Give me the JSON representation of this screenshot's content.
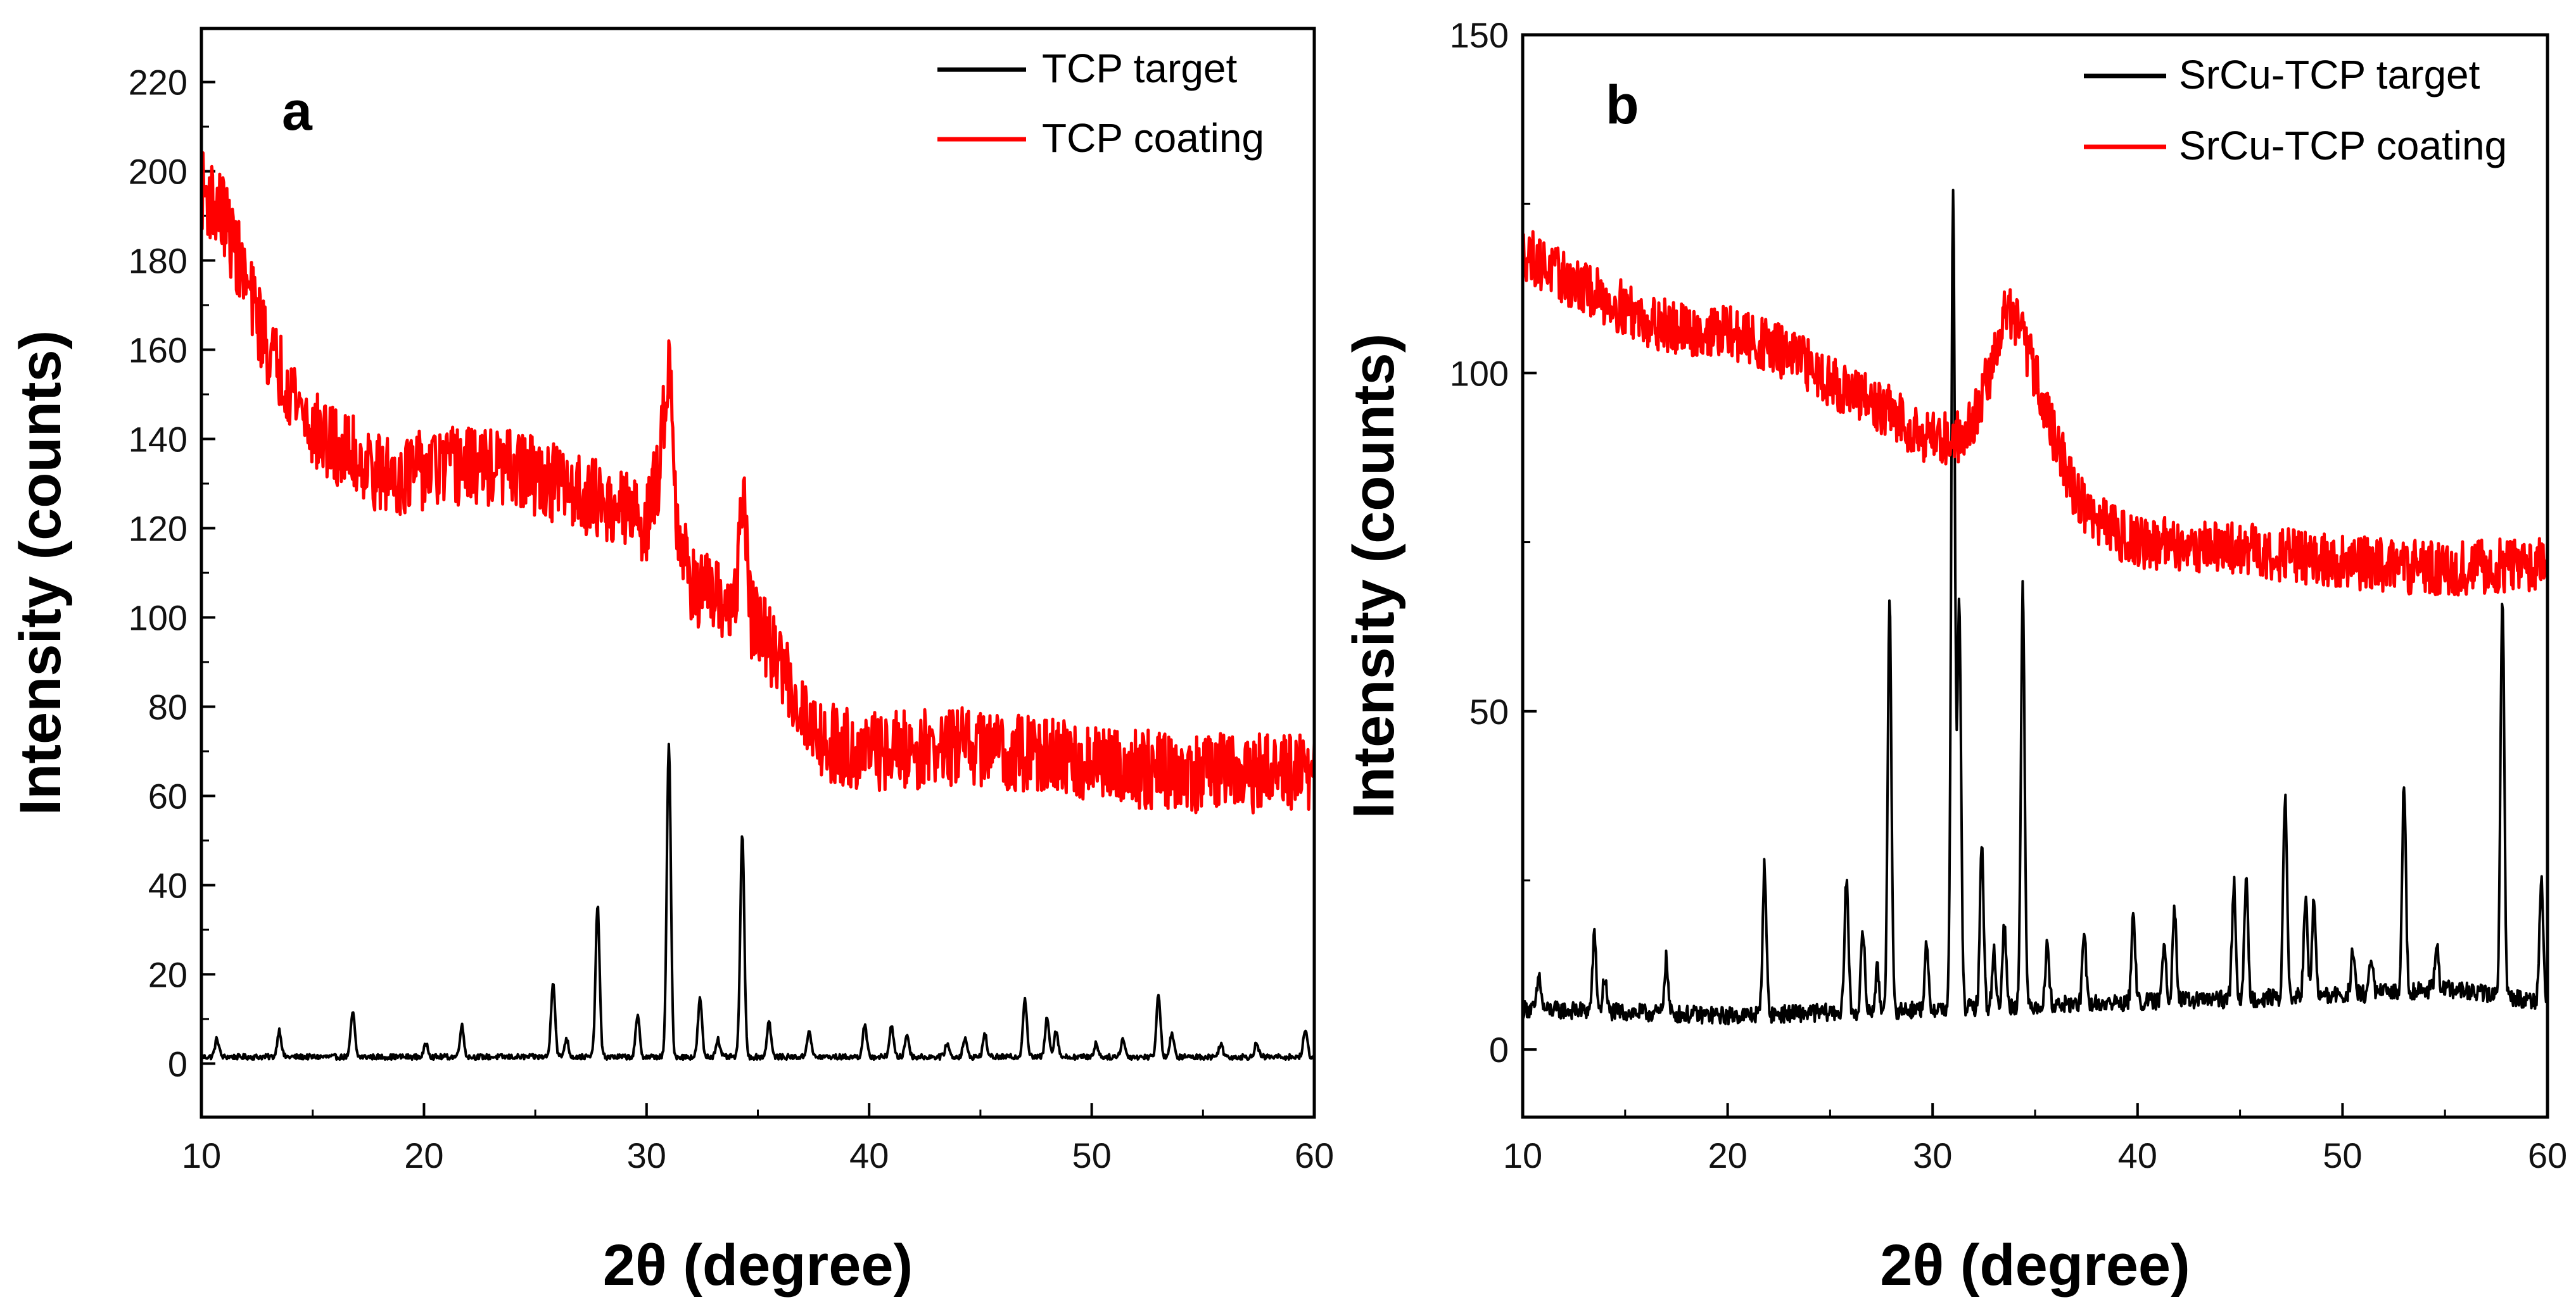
{
  "chart_data": [
    {
      "type": "line",
      "panel_label": "a",
      "xlabel": "2θ (degree)",
      "ylabel": "Intensity (counts)",
      "xlim": [
        10,
        60
      ],
      "ylim": [
        -12,
        232
      ],
      "x_ticks": [
        10,
        20,
        30,
        40,
        50,
        60
      ],
      "y_ticks": [
        0,
        20,
        40,
        60,
        80,
        100,
        120,
        140,
        160,
        180,
        200,
        220
      ],
      "legend_position": "top-right",
      "grid": false,
      "series": [
        {
          "name": "TCP target",
          "color": "#000000",
          "baseline": 1.5,
          "noise": 0.6,
          "peaks": [
            [
              10.7,
              4
            ],
            [
              13.5,
              6
            ],
            [
              16.8,
              10
            ],
            [
              20.1,
              3
            ],
            [
              21.7,
              7
            ],
            [
              25.8,
              17
            ],
            [
              26.4,
              4
            ],
            [
              27.8,
              34
            ],
            [
              29.6,
              9
            ],
            [
              31.0,
              70
            ],
            [
              32.4,
              13
            ],
            [
              33.2,
              4
            ],
            [
              34.3,
              50
            ],
            [
              35.5,
              8
            ],
            [
              37.3,
              6
            ],
            [
              39.8,
              7
            ],
            [
              41.0,
              7
            ],
            [
              41.7,
              5
            ],
            [
              43.5,
              3
            ],
            [
              44.3,
              4
            ],
            [
              45.2,
              5
            ],
            [
              47.0,
              13
            ],
            [
              48.0,
              9
            ],
            [
              48.4,
              6
            ],
            [
              50.2,
              3
            ],
            [
              51.4,
              4
            ],
            [
              53.0,
              14
            ],
            [
              53.6,
              5
            ],
            [
              55.8,
              3
            ],
            [
              57.4,
              3
            ],
            [
              59.6,
              6
            ]
          ],
          "sampled_points": [
            [
              10,
              1.5
            ],
            [
              20,
              1.5
            ],
            [
              30,
              1.5
            ],
            [
              31.0,
              71.5
            ],
            [
              34.3,
              51.5
            ],
            [
              40,
              1.5
            ],
            [
              50,
              1.5
            ],
            [
              60,
              1.5
            ]
          ]
        },
        {
          "name": "TCP coating",
          "color": "#ff0000",
          "noise": 9,
          "envelope": [
            [
              10,
              196
            ],
            [
              11,
              190
            ],
            [
              12,
              175
            ],
            [
              13,
              160
            ],
            [
              14,
              152
            ],
            [
              15,
              142
            ],
            [
              16,
              138
            ],
            [
              17,
              136
            ],
            [
              18,
              132
            ],
            [
              19,
              132
            ],
            [
              20,
              133
            ],
            [
              22,
              134
            ],
            [
              24,
              133
            ],
            [
              26,
              130
            ],
            [
              28,
              126
            ],
            [
              29,
              124
            ],
            [
              30,
              121
            ],
            [
              30.6,
              134
            ],
            [
              31.0,
              160
            ],
            [
              31.4,
              120
            ],
            [
              32,
              108
            ],
            [
              33,
              104
            ],
            [
              34,
              102
            ],
            [
              34.3,
              130
            ],
            [
              34.7,
              100
            ],
            [
              36,
              90
            ],
            [
              37,
              79
            ],
            [
              38,
              72
            ],
            [
              40,
              70
            ],
            [
              45,
              71
            ],
            [
              50,
              67
            ],
            [
              55,
              65
            ],
            [
              60,
              65
            ]
          ],
          "sampled_points": [
            [
              10,
              196
            ],
            [
              20,
              133
            ],
            [
              31.0,
              160
            ],
            [
              34.3,
              130
            ],
            [
              40,
              70
            ],
            [
              50,
              67
            ],
            [
              60,
              65
            ]
          ]
        }
      ]
    },
    {
      "type": "line",
      "panel_label": "b",
      "xlabel": "2θ (degree)",
      "ylabel": "Intensity (counts)",
      "xlim": [
        10,
        60
      ],
      "ylim": [
        -10,
        150
      ],
      "x_ticks": [
        10,
        20,
        30,
        40,
        50,
        60
      ],
      "y_ticks": [
        0,
        50,
        100,
        150
      ],
      "legend_position": "top-right",
      "grid": false,
      "series": [
        {
          "name": "SrCu-TCP target",
          "color": "#000000",
          "baseline_envelope": [
            [
              10,
              6
            ],
            [
              20,
              5
            ],
            [
              30,
              6
            ],
            [
              40,
              7
            ],
            [
              50,
              8
            ],
            [
              55,
              9
            ],
            [
              60,
              7
            ]
          ],
          "noise": 1.3,
          "peaks": [
            [
              10.8,
              5
            ],
            [
              13.5,
              11
            ],
            [
              14.0,
              5
            ],
            [
              17.0,
              8
            ],
            [
              21.8,
              22
            ],
            [
              25.8,
              20
            ],
            [
              26.6,
              12
            ],
            [
              27.3,
              6
            ],
            [
              27.9,
              60
            ],
            [
              29.7,
              9
            ],
            [
              31.0,
              120
            ],
            [
              31.3,
              60
            ],
            [
              32.4,
              24
            ],
            [
              33.0,
              8
            ],
            [
              33.5,
              12
            ],
            [
              34.4,
              62
            ],
            [
              35.6,
              9
            ],
            [
              37.4,
              10
            ],
            [
              39.8,
              13
            ],
            [
              41.3,
              9
            ],
            [
              41.8,
              14
            ],
            [
              44.7,
              17
            ],
            [
              45.3,
              17
            ],
            [
              47.2,
              30
            ],
            [
              48.2,
              14
            ],
            [
              48.6,
              14
            ],
            [
              50.5,
              6
            ],
            [
              51.4,
              5
            ],
            [
              53.0,
              31
            ],
            [
              54.6,
              6
            ],
            [
              57.8,
              60
            ],
            [
              59.7,
              18
            ]
          ],
          "sampled_points": [
            [
              10,
              6
            ],
            [
              20,
              5
            ],
            [
              27.9,
              66
            ],
            [
              31.0,
              126
            ],
            [
              34.4,
              69
            ],
            [
              47.2,
              37
            ],
            [
              53.0,
              39
            ],
            [
              57.8,
              67
            ],
            [
              60,
              7
            ]
          ]
        },
        {
          "name": "SrCu-TCP coating",
          "color": "#ff0000",
          "noise": 4,
          "envelope": [
            [
              10,
              118
            ],
            [
              12,
              114
            ],
            [
              14,
              111
            ],
            [
              16,
              108
            ],
            [
              18,
              106
            ],
            [
              20,
              106
            ],
            [
              22,
              104
            ],
            [
              24,
              101
            ],
            [
              26,
              97
            ],
            [
              28,
              94
            ],
            [
              29.5,
              91
            ],
            [
              31,
              90
            ],
            [
              32,
              93
            ],
            [
              33,
              102
            ],
            [
              33.6,
              110
            ],
            [
              34.2,
              107
            ],
            [
              35,
              100
            ],
            [
              36,
              90
            ],
            [
              37,
              82
            ],
            [
              38,
              78
            ],
            [
              40,
              75
            ],
            [
              45,
              74
            ],
            [
              50,
              72
            ],
            [
              55,
              71
            ],
            [
              60,
              72
            ]
          ],
          "sampled_points": [
            [
              10,
              118
            ],
            [
              20,
              106
            ],
            [
              31,
              90
            ],
            [
              33.6,
              110
            ],
            [
              40,
              75
            ],
            [
              50,
              72
            ],
            [
              60,
              72
            ]
          ]
        }
      ]
    }
  ]
}
